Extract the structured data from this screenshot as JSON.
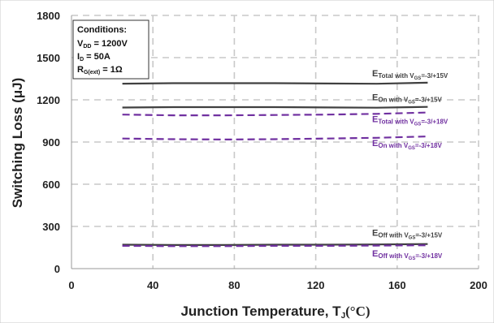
{
  "chart_data": {
    "type": "line",
    "xlabel": "Junction Temperature, T",
    "xlabel_sub": "J",
    "xlabel_unit": "(°C)",
    "ylabel": "Switching Loss (μJ)",
    "xlim": [
      0,
      200
    ],
    "ylim": [
      0,
      1800
    ],
    "xticks": [
      "0",
      "40",
      "80",
      "120",
      "160",
      "200"
    ],
    "yticks": [
      "0",
      "300",
      "600",
      "900",
      "1200",
      "1500",
      "1800"
    ],
    "grid": true,
    "conditions": {
      "title": "Conditions:",
      "lines": [
        {
          "main": "V",
          "sub": "DD",
          "rest": " = 1200V"
        },
        {
          "main": "I",
          "sub": "D",
          "rest": " = 50A"
        },
        {
          "main": "R",
          "sub": "G(ext)",
          "rest": " = 1Ω"
        }
      ]
    },
    "series": [
      {
        "main": "E",
        "sub": "Total with V",
        "sub2": "GS",
        "rest": "=-3/+15V",
        "color": "#404040",
        "dash": false,
        "x": [
          25,
          50,
          75,
          100,
          125,
          150,
          175
        ],
        "y": [
          1315,
          1318,
          1318,
          1318,
          1316,
          1314,
          1322
        ]
      },
      {
        "main": "E",
        "sub": "On with V",
        "sub2": "GS",
        "rest": "=-3/+15V",
        "color": "#404040",
        "dash": false,
        "x": [
          25,
          50,
          75,
          100,
          125,
          150,
          175
        ],
        "y": [
          1145,
          1148,
          1148,
          1148,
          1146,
          1144,
          1150
        ]
      },
      {
        "main": "E",
        "sub": "Total with V",
        "sub2": "GS",
        "rest": "=-3/+18V",
        "color": "#7030a0",
        "dash": true,
        "x": [
          25,
          50,
          75,
          100,
          125,
          150,
          175
        ],
        "y": [
          1095,
          1090,
          1090,
          1092,
          1095,
          1100,
          1110
        ]
      },
      {
        "main": "E",
        "sub": "On with V",
        "sub2": "GS",
        "rest": "=-3/+18V",
        "color": "#7030a0",
        "dash": true,
        "x": [
          25,
          50,
          75,
          100,
          125,
          150,
          175
        ],
        "y": [
          925,
          920,
          918,
          920,
          925,
          930,
          940
        ]
      },
      {
        "main": "E",
        "sub": "Off with V",
        "sub2": "GS",
        "rest": "=-3/+15V",
        "color": "#404040",
        "dash": false,
        "x": [
          25,
          50,
          75,
          100,
          125,
          150,
          175
        ],
        "y": [
          170,
          168,
          168,
          170,
          170,
          172,
          175
        ]
      },
      {
        "main": "E",
        "sub": "Off with V",
        "sub2": "GS",
        "rest": "=-3/+18V",
        "color": "#7030a0",
        "dash": true,
        "x": [
          25,
          50,
          75,
          100,
          125,
          150,
          175
        ],
        "y": [
          162,
          160,
          160,
          162,
          162,
          164,
          166
        ]
      }
    ]
  }
}
